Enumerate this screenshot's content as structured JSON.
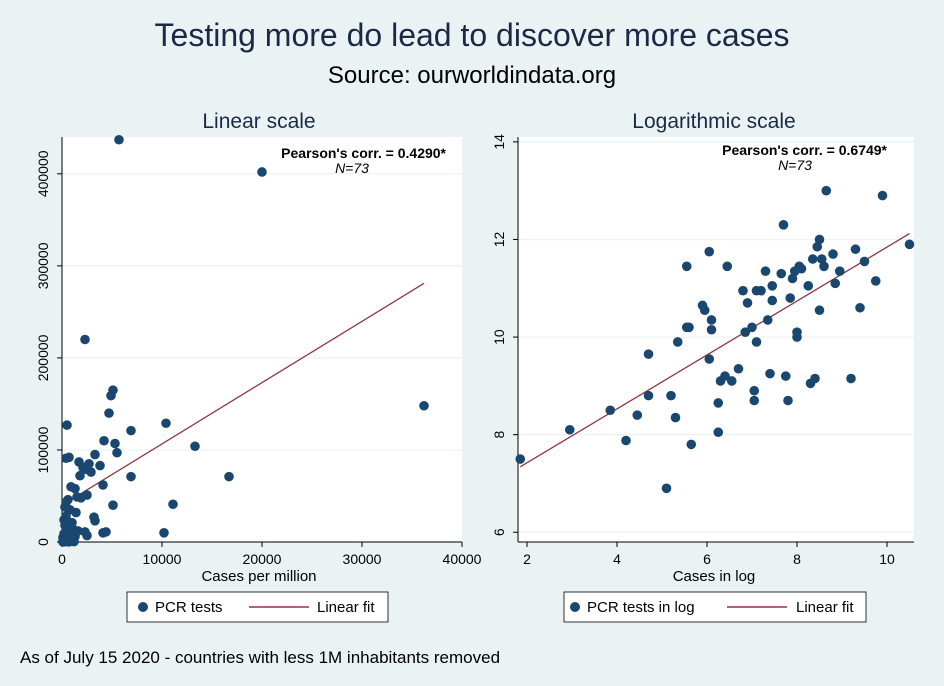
{
  "title": "Testing more do lead to discover more cases",
  "subtitle": "Source: ourworldindata.org",
  "note": "As of July 15 2020 - countries with less 1M inhabitants removed",
  "colors": {
    "marker": "#1a476f",
    "fit": "#90353b",
    "background": "#eaf2f3",
    "plot_bg": "#ffffff",
    "title": "#1a2a46"
  },
  "chart_data": [
    {
      "type": "scatter",
      "title": "Linear scale",
      "xlabel": "Cases per million",
      "ylabel": "",
      "xlim": [
        0,
        40000
      ],
      "ylim": [
        0,
        440000
      ],
      "xticks": [
        0,
        10000,
        20000,
        30000,
        40000
      ],
      "yticks": [
        0,
        100000,
        200000,
        300000,
        400000
      ],
      "xtick_labels": [
        "0",
        "10000",
        "20000",
        "30000",
        "40000"
      ],
      "ytick_labels": [
        "0",
        "100000",
        "200000",
        "300000",
        "400000"
      ],
      "annotation": "Pearson's corr. = 0.4290*",
      "n_label": "N=73",
      "legend": [
        "PCR tests",
        "Linear fit"
      ],
      "legend_position": "bottom",
      "fit": {
        "x": [
          0,
          36200
        ],
        "y": [
          40000,
          281000
        ]
      },
      "points": [
        [
          5700,
          437000
        ],
        [
          20000,
          402000
        ],
        [
          2300,
          220000
        ],
        [
          5100,
          165000
        ],
        [
          4900,
          159000
        ],
        [
          36200,
          148000
        ],
        [
          4700,
          140000
        ],
        [
          10400,
          129000
        ],
        [
          500,
          127000
        ],
        [
          6900,
          121000
        ],
        [
          4200,
          110000
        ],
        [
          5300,
          107000
        ],
        [
          13300,
          104000
        ],
        [
          5500,
          97000
        ],
        [
          3300,
          95000
        ],
        [
          700,
          92000
        ],
        [
          400,
          91000
        ],
        [
          1700,
          87000
        ],
        [
          2700,
          85000
        ],
        [
          3800,
          83000
        ],
        [
          2100,
          81000
        ],
        [
          2400,
          79000
        ],
        [
          2900,
          76000
        ],
        [
          1800,
          72000
        ],
        [
          6900,
          71000
        ],
        [
          16700,
          71000
        ],
        [
          4100,
          62000
        ],
        [
          900,
          60000
        ],
        [
          1300,
          58000
        ],
        [
          2500,
          51000
        ],
        [
          1500,
          49000
        ],
        [
          1900,
          48000
        ],
        [
          600,
          46000
        ],
        [
          400,
          43000
        ],
        [
          11100,
          41000
        ],
        [
          5100,
          40000
        ],
        [
          300,
          38000
        ],
        [
          800,
          35000
        ],
        [
          1400,
          32000
        ],
        [
          3200,
          27000
        ],
        [
          3300,
          23000
        ],
        [
          400,
          28000
        ],
        [
          200,
          24000
        ],
        [
          600,
          22000
        ],
        [
          1000,
          21000
        ],
        [
          300,
          18000
        ],
        [
          700,
          16000
        ],
        [
          1100,
          14000
        ],
        [
          1600,
          12000
        ],
        [
          2300,
          11000
        ],
        [
          4400,
          11000
        ],
        [
          4100,
          10000
        ],
        [
          10200,
          10000
        ],
        [
          200,
          9000
        ],
        [
          500,
          8000
        ],
        [
          900,
          7000
        ],
        [
          2500,
          7000
        ],
        [
          1300,
          6000
        ],
        [
          100,
          5000
        ],
        [
          400,
          4000
        ],
        [
          700,
          3000
        ],
        [
          200,
          2500
        ],
        [
          1000,
          2000
        ],
        [
          300,
          1500
        ],
        [
          600,
          1200
        ],
        [
          100,
          900
        ],
        [
          800,
          800
        ],
        [
          200,
          600
        ],
        [
          500,
          500
        ],
        [
          1200,
          400
        ],
        [
          300,
          300
        ],
        [
          100,
          200
        ],
        [
          700,
          150
        ]
      ]
    },
    {
      "type": "scatter",
      "title": "Logarithmic scale",
      "xlabel": "Cases in log",
      "ylabel": "",
      "xlim": [
        1.8,
        10.6
      ],
      "ylim": [
        5.8,
        14.1
      ],
      "xticks": [
        2,
        4,
        6,
        8,
        10
      ],
      "yticks": [
        6,
        8,
        10,
        12,
        14
      ],
      "xtick_labels": [
        "2",
        "4",
        "6",
        "8",
        "10"
      ],
      "ytick_labels": [
        "6",
        "8",
        "10",
        "12",
        "14"
      ],
      "annotation": "Pearson's corr. = 0.6749*",
      "n_label": "N=73",
      "legend": [
        "PCR tests in log",
        "Linear fit"
      ],
      "legend_position": "bottom",
      "fit": {
        "x": [
          1.85,
          10.5
        ],
        "y": [
          7.34,
          12.12
        ]
      },
      "points": [
        [
          1.85,
          7.5
        ],
        [
          2.95,
          8.1
        ],
        [
          3.85,
          8.5
        ],
        [
          4.2,
          7.88
        ],
        [
          4.45,
          8.4
        ],
        [
          4.7,
          9.65
        ],
        [
          4.7,
          8.8
        ],
        [
          5.1,
          6.9
        ],
        [
          5.2,
          8.8
        ],
        [
          5.3,
          8.35
        ],
        [
          5.35,
          9.9
        ],
        [
          5.55,
          10.2
        ],
        [
          5.55,
          11.45
        ],
        [
          5.6,
          10.2
        ],
        [
          5.65,
          7.8
        ],
        [
          5.9,
          10.65
        ],
        [
          5.95,
          10.55
        ],
        [
          6.05,
          11.75
        ],
        [
          6.05,
          9.55
        ],
        [
          6.1,
          10.35
        ],
        [
          6.1,
          10.15
        ],
        [
          6.25,
          8.05
        ],
        [
          6.25,
          8.65
        ],
        [
          6.3,
          9.1
        ],
        [
          6.4,
          9.2
        ],
        [
          6.45,
          11.45
        ],
        [
          6.55,
          9.1
        ],
        [
          6.7,
          9.35
        ],
        [
          6.8,
          10.95
        ],
        [
          6.85,
          10.1
        ],
        [
          6.9,
          10.7
        ],
        [
          7.0,
          10.2
        ],
        [
          7.05,
          8.7
        ],
        [
          7.05,
          8.9
        ],
        [
          7.1,
          9.9
        ],
        [
          7.1,
          10.95
        ],
        [
          7.2,
          10.95
        ],
        [
          7.3,
          11.35
        ],
        [
          7.35,
          10.35
        ],
        [
          7.4,
          9.25
        ],
        [
          7.45,
          11.05
        ],
        [
          7.45,
          10.75
        ],
        [
          7.65,
          11.3
        ],
        [
          7.7,
          12.3
        ],
        [
          7.75,
          9.2
        ],
        [
          7.8,
          8.7
        ],
        [
          7.85,
          10.8
        ],
        [
          7.9,
          11.2
        ],
        [
          7.95,
          11.35
        ],
        [
          8.0,
          10.0
        ],
        [
          8.0,
          10.1
        ],
        [
          8.05,
          11.45
        ],
        [
          8.1,
          11.4
        ],
        [
          8.25,
          11.05
        ],
        [
          8.3,
          9.05
        ],
        [
          8.35,
          11.6
        ],
        [
          8.4,
          9.15
        ],
        [
          8.45,
          11.85
        ],
        [
          8.5,
          12.0
        ],
        [
          8.5,
          10.55
        ],
        [
          8.55,
          11.6
        ],
        [
          8.6,
          11.45
        ],
        [
          8.65,
          13.0
        ],
        [
          8.8,
          11.7
        ],
        [
          8.85,
          11.1
        ],
        [
          8.95,
          11.35
        ],
        [
          9.2,
          9.15
        ],
        [
          9.3,
          11.8
        ],
        [
          9.4,
          10.6
        ],
        [
          9.5,
          11.55
        ],
        [
          9.75,
          11.15
        ],
        [
          9.9,
          12.9
        ],
        [
          10.5,
          11.9
        ]
      ]
    }
  ]
}
